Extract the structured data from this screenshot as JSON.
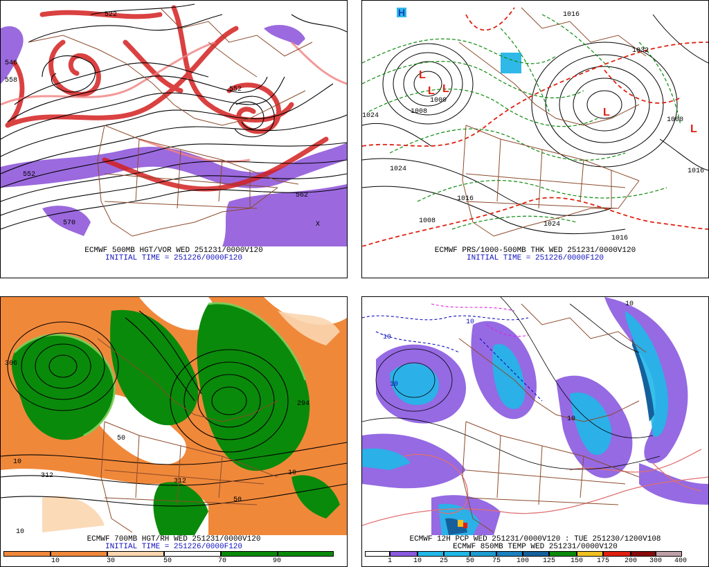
{
  "panels": [
    {
      "id": "p1",
      "caption": "ECMWF 500MB HGT/VOR WED 251231/0000V120",
      "init": "INITIAL TIME = 251226/0000F120",
      "map_labels": [
        "522",
        "546",
        "558",
        "552",
        "552",
        "570",
        "562",
        "X"
      ]
    },
    {
      "id": "p2",
      "caption": "ECMWF PRS/1000-500MB THK WED 251231/0000V120",
      "init": "INITIAL TIME = 251226/0000F120",
      "map_labels": [
        "1024",
        "1008",
        "1000",
        "1024",
        "1016",
        "1008",
        "1024",
        "1000",
        "1016",
        "1032",
        "1016",
        "1016",
        "H",
        "L",
        "L",
        "L",
        "L",
        "L"
      ]
    },
    {
      "id": "p3",
      "caption": "ECMWF 700MB HGT/RH WED 251231/0000V120",
      "init": "INITIAL TIME = 251226/0000F120",
      "map_labels": [
        "10",
        "312",
        "312",
        "50",
        "10",
        "306",
        "294",
        "50",
        "10"
      ],
      "scale": {
        "ticks": [
          "10",
          "30",
          "50",
          "70",
          "90"
        ]
      }
    },
    {
      "id": "p4",
      "caption": "ECMWF 12H PCP WED 251231/0000V120 : TUE 251230/1200V108",
      "caption2": "ECMWF 850MB TEMP WED 251231/0000V120",
      "map_labels": [
        "10",
        "10",
        "10",
        "10",
        "10"
      ],
      "scale": {
        "ticks": [
          "1",
          "10",
          "25",
          "50",
          "75",
          "100",
          "125",
          "150",
          "175",
          "200",
          "300",
          "400"
        ]
      }
    }
  ],
  "colors": {
    "vorticity_red": "#d42020",
    "vorticity_purple": "#8a50d8",
    "height_contour": "#000000",
    "map_border": "#8b4a2a",
    "thickness_red": "#e02010",
    "thickness_green": "#0a8a0a",
    "rh_green": "#0a8a0a",
    "rh_orange": "#f0883a",
    "pcp_purple": "#8a5ae0",
    "pcp_cyan": "#20b8e8",
    "temp_pink": "#e07070"
  },
  "rh_scale_colors": [
    "#f0883a",
    "#f0883a",
    "#fbd6b0",
    "#ffffff",
    "#ffffff",
    "#0a8a0a",
    "#0a8a0a"
  ],
  "pcp_scale_colors": [
    "#ffffff",
    "#8a5ae0",
    "#20b8e8",
    "#20b8e8",
    "#1c9cd0",
    "#1a80c0",
    "#15609c",
    "#0a8a0a",
    "#f0c020",
    "#e02010",
    "#8a0a0a",
    "#c0a0a8"
  ]
}
